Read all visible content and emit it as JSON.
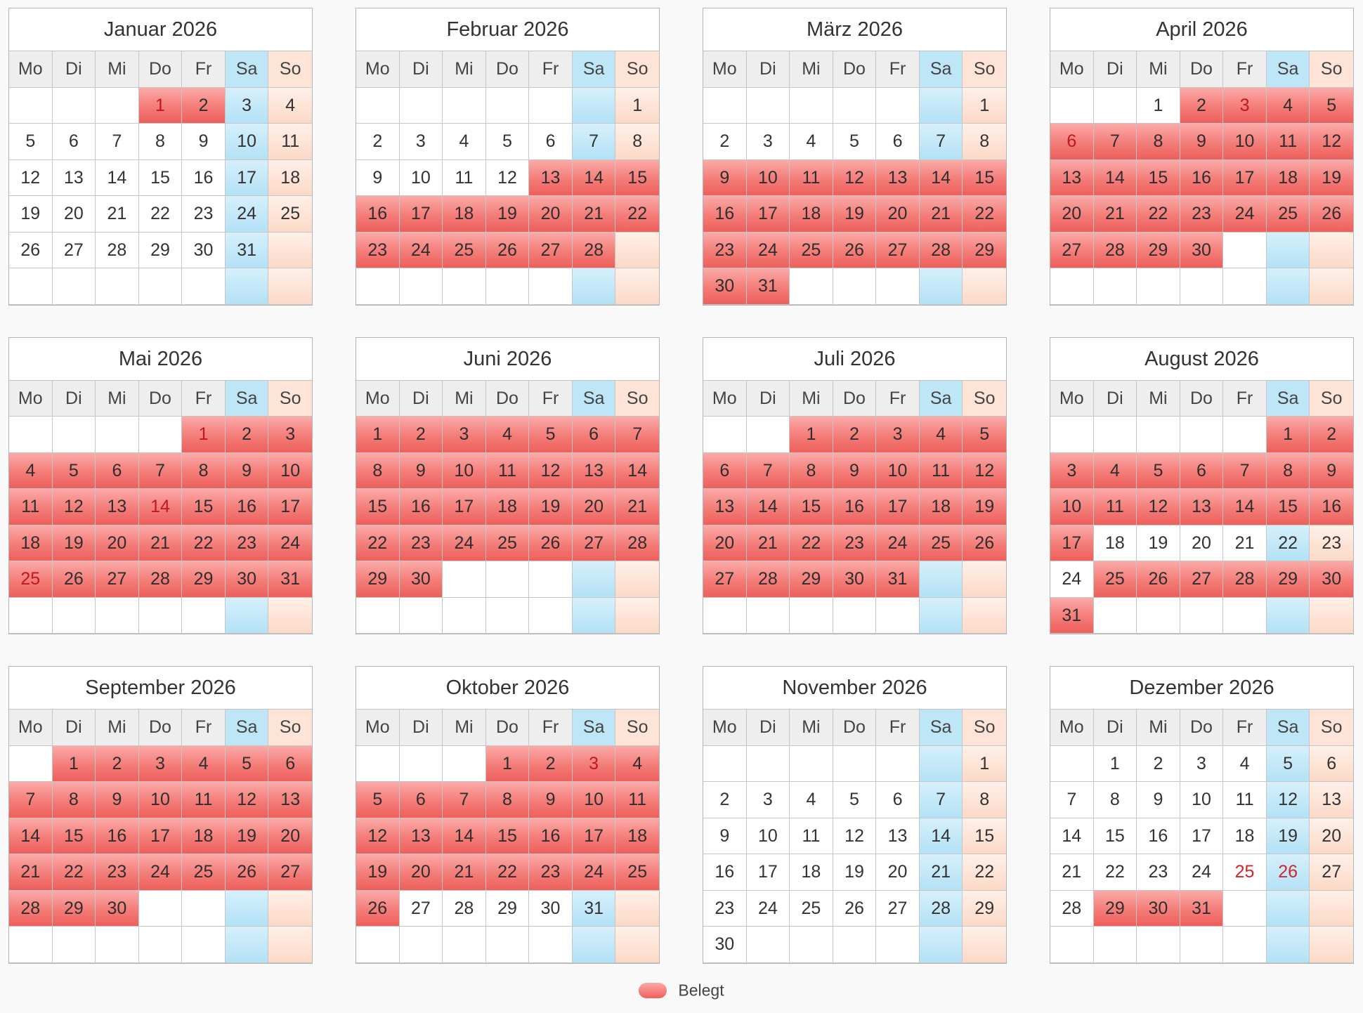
{
  "weekday_headers": [
    "Mo",
    "Di",
    "Mi",
    "Do",
    "Fr",
    "Sa",
    "So"
  ],
  "legend": {
    "label": "Belegt"
  },
  "colors": {
    "booked": "#ee5f5b",
    "saturday": "#bfe6f7",
    "sunday": "#fde4d7",
    "holiday_text": "#d4232d"
  },
  "months": [
    {
      "title": "Januar 2026",
      "offset": 3,
      "days": 31,
      "booked": [
        1,
        2
      ],
      "holidays": [
        1
      ]
    },
    {
      "title": "Februar 2026",
      "offset": 6,
      "days": 28,
      "booked": [
        13,
        14,
        15,
        16,
        17,
        18,
        19,
        20,
        21,
        22,
        23,
        24,
        25,
        26,
        27,
        28
      ],
      "holidays": []
    },
    {
      "title": "März 2026",
      "offset": 6,
      "days": 31,
      "booked": [
        9,
        10,
        11,
        12,
        13,
        14,
        15,
        16,
        17,
        18,
        19,
        20,
        21,
        22,
        23,
        24,
        25,
        26,
        27,
        28,
        29,
        30,
        31
      ],
      "holidays": []
    },
    {
      "title": "April 2026",
      "offset": 2,
      "days": 30,
      "booked": [
        2,
        3,
        4,
        5,
        6,
        7,
        8,
        9,
        10,
        11,
        12,
        13,
        14,
        15,
        16,
        17,
        18,
        19,
        20,
        21,
        22,
        23,
        24,
        25,
        26,
        27,
        28,
        29,
        30
      ],
      "holidays": [
        3,
        6
      ]
    },
    {
      "title": "Mai 2026",
      "offset": 4,
      "days": 31,
      "booked": [
        1,
        2,
        3,
        4,
        5,
        6,
        7,
        8,
        9,
        10,
        11,
        12,
        13,
        14,
        15,
        16,
        17,
        18,
        19,
        20,
        21,
        22,
        23,
        24,
        25,
        26,
        27,
        28,
        29,
        30,
        31
      ],
      "holidays": [
        1,
        14,
        25
      ]
    },
    {
      "title": "Juni 2026",
      "offset": 0,
      "days": 30,
      "booked": [
        1,
        2,
        3,
        4,
        5,
        6,
        7,
        8,
        9,
        10,
        11,
        12,
        13,
        14,
        15,
        16,
        17,
        18,
        19,
        20,
        21,
        22,
        23,
        24,
        25,
        26,
        27,
        28,
        29,
        30
      ],
      "holidays": []
    },
    {
      "title": "Juli 2026",
      "offset": 2,
      "days": 31,
      "booked": [
        1,
        2,
        3,
        4,
        5,
        6,
        7,
        8,
        9,
        10,
        11,
        12,
        13,
        14,
        15,
        16,
        17,
        18,
        19,
        20,
        21,
        22,
        23,
        24,
        25,
        26,
        27,
        28,
        29,
        30,
        31
      ],
      "holidays": []
    },
    {
      "title": "August 2026",
      "offset": 5,
      "days": 31,
      "booked": [
        1,
        2,
        3,
        4,
        5,
        6,
        7,
        8,
        9,
        10,
        11,
        12,
        13,
        14,
        15,
        16,
        17,
        25,
        26,
        27,
        28,
        29,
        30,
        31
      ],
      "holidays": []
    },
    {
      "title": "September 2026",
      "offset": 1,
      "days": 30,
      "booked": [
        1,
        2,
        3,
        4,
        5,
        6,
        7,
        8,
        9,
        10,
        11,
        12,
        13,
        14,
        15,
        16,
        17,
        18,
        19,
        20,
        21,
        22,
        23,
        24,
        25,
        26,
        27,
        28,
        29,
        30
      ],
      "holidays": []
    },
    {
      "title": "Oktober 2026",
      "offset": 3,
      "days": 31,
      "booked": [
        1,
        2,
        3,
        4,
        5,
        6,
        7,
        8,
        9,
        10,
        11,
        12,
        13,
        14,
        15,
        16,
        17,
        18,
        19,
        20,
        21,
        22,
        23,
        24,
        25,
        26
      ],
      "holidays": [
        3
      ]
    },
    {
      "title": "November 2026",
      "offset": 6,
      "days": 30,
      "booked": [],
      "holidays": []
    },
    {
      "title": "Dezember 2026",
      "offset": 1,
      "days": 31,
      "booked": [
        29,
        30,
        31
      ],
      "holidays": [
        25,
        26
      ]
    }
  ]
}
